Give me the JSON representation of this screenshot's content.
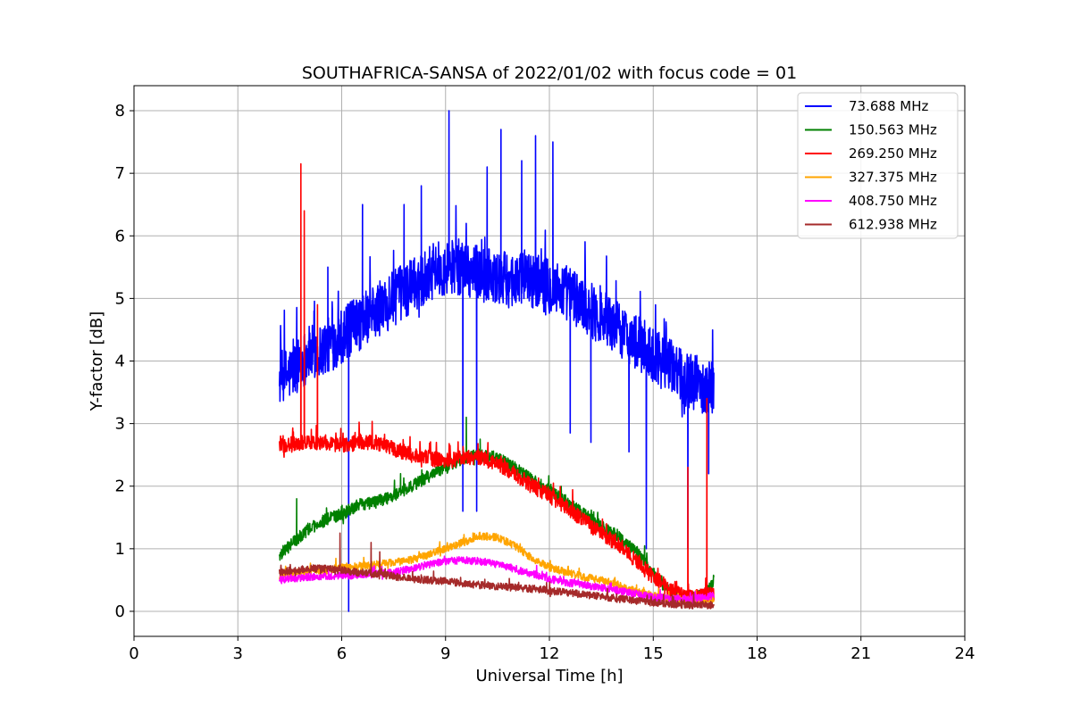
{
  "chart_data": {
    "type": "line",
    "title": "SOUTHAFRICA-SANSA of 2022/01/02 with focus code = 01",
    "xlabel": "Universal Time [h]",
    "ylabel": "Y-factor [dB]",
    "xlim": [
      0,
      24
    ],
    "ylim": [
      -0.4,
      8.4
    ],
    "xticks": [
      0,
      3,
      6,
      9,
      12,
      15,
      18,
      21,
      24
    ],
    "yticks": [
      0,
      1,
      2,
      3,
      4,
      5,
      6,
      7,
      8
    ],
    "xtick_labels": [
      "0",
      "3",
      "6",
      "9",
      "12",
      "15",
      "18",
      "21",
      "24"
    ],
    "ytick_labels": [
      "0",
      "1",
      "2",
      "3",
      "4",
      "5",
      "6",
      "7",
      "8"
    ],
    "grid": true,
    "legend_position": "top-right",
    "series": [
      {
        "name": "73.688 MHz",
        "legend_label": " 73.688 MHz",
        "color": "#0000ff",
        "x": [
          4.2,
          4.5,
          5.0,
          5.5,
          6.0,
          6.5,
          7.0,
          7.5,
          8.0,
          8.5,
          9.0,
          9.5,
          10.0,
          10.5,
          11.0,
          11.5,
          12.0,
          12.5,
          13.0,
          13.5,
          14.0,
          14.5,
          15.0,
          15.5,
          16.0,
          16.5,
          16.75
        ],
        "y": [
          3.7,
          3.8,
          4.1,
          4.2,
          4.4,
          4.6,
          4.8,
          5.0,
          5.2,
          5.4,
          5.5,
          5.5,
          5.4,
          5.3,
          5.3,
          5.3,
          5.2,
          5.1,
          4.9,
          4.7,
          4.5,
          4.3,
          4.1,
          3.9,
          3.7,
          3.6,
          3.6
        ],
        "noise_amp": 0.9,
        "spikes": [
          [
            4.6,
            4.35
          ],
          [
            5.2,
            4.8
          ],
          [
            5.6,
            5.5
          ],
          [
            6.2,
            0.0
          ],
          [
            6.6,
            6.5
          ],
          [
            7.8,
            6.5
          ],
          [
            8.3,
            6.8
          ],
          [
            9.1,
            8.0
          ],
          [
            9.5,
            1.6
          ],
          [
            9.9,
            1.6
          ],
          [
            10.2,
            7.1
          ],
          [
            10.6,
            7.7
          ],
          [
            11.2,
            7.2
          ],
          [
            11.6,
            7.6
          ],
          [
            12.1,
            7.5
          ],
          [
            12.6,
            2.85
          ],
          [
            13.2,
            2.7
          ],
          [
            14.3,
            2.55
          ],
          [
            14.8,
            1.0
          ],
          [
            16.0,
            1.0
          ],
          [
            16.6,
            2.2
          ]
        ]
      },
      {
        "name": "150.563 MHz",
        "legend_label": "150.563 MHz",
        "color": "#008000",
        "x": [
          4.2,
          4.5,
          5.0,
          5.5,
          6.0,
          6.5,
          7.0,
          7.5,
          8.0,
          8.5,
          9.0,
          9.5,
          10.0,
          10.5,
          11.0,
          11.5,
          12.0,
          12.5,
          13.0,
          13.5,
          14.0,
          14.5,
          15.0,
          15.5,
          16.0,
          16.5,
          16.75
        ],
        "y": [
          0.9,
          1.05,
          1.3,
          1.45,
          1.55,
          1.7,
          1.75,
          1.85,
          2.0,
          2.15,
          2.3,
          2.45,
          2.5,
          2.45,
          2.3,
          2.1,
          1.95,
          1.75,
          1.55,
          1.35,
          1.2,
          0.95,
          0.6,
          0.3,
          0.2,
          0.25,
          0.5
        ],
        "noise_amp": 0.2,
        "spikes": [
          [
            4.7,
            1.8
          ],
          [
            7.7,
            2.2
          ],
          [
            9.6,
            3.1
          ],
          [
            10.0,
            2.75
          ]
        ]
      },
      {
        "name": "269.250 MHz",
        "legend_label": "269.250 MHz",
        "color": "#ff0000",
        "x": [
          4.2,
          4.5,
          5.0,
          5.5,
          6.0,
          6.5,
          7.0,
          7.5,
          8.0,
          8.5,
          9.0,
          9.5,
          10.0,
          10.5,
          11.0,
          11.5,
          12.0,
          12.5,
          13.0,
          13.5,
          14.0,
          14.5,
          15.0,
          15.5,
          16.0,
          16.5,
          16.75
        ],
        "y": [
          2.65,
          2.65,
          2.7,
          2.7,
          2.65,
          2.7,
          2.7,
          2.6,
          2.5,
          2.45,
          2.4,
          2.45,
          2.45,
          2.35,
          2.2,
          2.0,
          1.85,
          1.65,
          1.45,
          1.25,
          1.05,
          0.8,
          0.55,
          0.35,
          0.2,
          0.25,
          0.3
        ],
        "noise_amp": 0.25,
        "spikes": [
          [
            4.82,
            7.15
          ],
          [
            4.92,
            6.4
          ],
          [
            5.3,
            4.9
          ],
          [
            16.0,
            2.3
          ],
          [
            16.55,
            3.4
          ]
        ]
      },
      {
        "name": "327.375 MHz",
        "legend_label": "327.375 MHz",
        "color": "#ffa500",
        "x": [
          4.2,
          4.5,
          5.0,
          5.5,
          6.0,
          6.5,
          7.0,
          7.5,
          8.0,
          8.5,
          9.0,
          9.5,
          10.0,
          10.5,
          11.0,
          11.5,
          12.0,
          12.5,
          13.0,
          13.5,
          14.0,
          14.5,
          15.0,
          15.5,
          16.0,
          16.5,
          16.75
        ],
        "y": [
          0.55,
          0.6,
          0.65,
          0.65,
          0.7,
          0.72,
          0.75,
          0.78,
          0.82,
          0.9,
          1.0,
          1.1,
          1.2,
          1.18,
          1.05,
          0.85,
          0.7,
          0.62,
          0.55,
          0.5,
          0.42,
          0.32,
          0.25,
          0.2,
          0.18,
          0.18,
          0.2
        ],
        "noise_amp": 0.12,
        "spikes": []
      },
      {
        "name": "408.750 MHz",
        "legend_label": "408.750 MHz",
        "color": "#ff00ff",
        "x": [
          4.2,
          4.5,
          5.0,
          5.5,
          6.0,
          6.5,
          7.0,
          7.5,
          8.0,
          8.5,
          9.0,
          9.5,
          10.0,
          10.5,
          11.0,
          11.5,
          12.0,
          12.5,
          13.0,
          13.5,
          14.0,
          14.5,
          15.0,
          15.5,
          16.0,
          16.5,
          16.75
        ],
        "y": [
          0.5,
          0.52,
          0.55,
          0.55,
          0.57,
          0.58,
          0.6,
          0.62,
          0.68,
          0.75,
          0.8,
          0.82,
          0.8,
          0.75,
          0.68,
          0.6,
          0.52,
          0.46,
          0.42,
          0.38,
          0.33,
          0.28,
          0.23,
          0.2,
          0.2,
          0.22,
          0.25
        ],
        "noise_amp": 0.12,
        "spikes": []
      },
      {
        "name": "612.938 MHz",
        "legend_label": "612.938 MHz",
        "color": "#a52a2a",
        "x": [
          4.2,
          4.5,
          5.0,
          5.5,
          6.0,
          6.5,
          7.0,
          7.5,
          8.0,
          8.5,
          9.0,
          9.5,
          10.0,
          10.5,
          11.0,
          11.5,
          12.0,
          12.5,
          13.0,
          13.5,
          14.0,
          14.5,
          15.0,
          15.5,
          16.0,
          16.5,
          16.75
        ],
        "y": [
          0.62,
          0.65,
          0.68,
          0.68,
          0.66,
          0.62,
          0.6,
          0.56,
          0.52,
          0.5,
          0.48,
          0.45,
          0.42,
          0.4,
          0.38,
          0.36,
          0.33,
          0.3,
          0.27,
          0.24,
          0.2,
          0.17,
          0.14,
          0.12,
          0.1,
          0.1,
          0.1
        ],
        "noise_amp": 0.12,
        "spikes": [
          [
            5.95,
            1.25
          ],
          [
            6.85,
            1.1
          ],
          [
            7.1,
            0.95
          ]
        ]
      }
    ]
  }
}
